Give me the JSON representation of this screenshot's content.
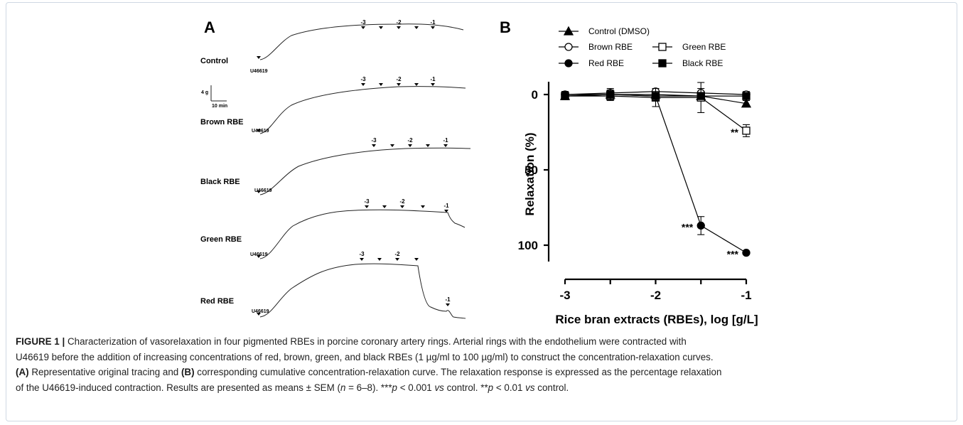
{
  "panel_a": {
    "label": "A",
    "traces": [
      {
        "name": "Control",
        "agonist": "U46619",
        "marks": [
          "-3",
          "-2",
          "-1"
        ]
      },
      {
        "name": "Brown RBE",
        "agonist": "U46619",
        "marks": [
          "-3",
          "-2",
          "-1"
        ]
      },
      {
        "name": "Black RBE",
        "agonist": "U46619",
        "marks": [
          "-3",
          "-2",
          "-1"
        ]
      },
      {
        "name": "Green RBE",
        "agonist": "U46619",
        "marks": [
          "-3",
          "-2",
          "-1"
        ]
      },
      {
        "name": "Red RBE",
        "agonist": "U46619",
        "marks": [
          "-3",
          "-2",
          "-1"
        ]
      }
    ],
    "scale_bar": {
      "force": "4 g",
      "time": "10 min"
    }
  },
  "panel_b": {
    "label": "B"
  },
  "chart_data": {
    "type": "line",
    "title": "",
    "xlabel": "Rice bran extracts (RBEs), log [g/L]",
    "ylabel": "Relaxation (%)",
    "xlim": [
      -3,
      -1
    ],
    "ylim": [
      0,
      100
    ],
    "y_inverted": true,
    "x_ticks": [
      "-3",
      "-2",
      "-1"
    ],
    "y_ticks": [
      "0",
      "50",
      "100"
    ],
    "legend_position": "top",
    "series": [
      {
        "name": "Control (DMSO)",
        "marker": "filled-triangle",
        "x": [
          -3,
          -2.5,
          -2,
          -1.5,
          -1
        ],
        "y": [
          1,
          0,
          0,
          1,
          6
        ],
        "err": [
          2,
          2,
          2,
          3,
          2
        ]
      },
      {
        "name": "Brown RBE",
        "marker": "open-circle",
        "x": [
          -3,
          -2.5,
          -2,
          -1.5,
          -1
        ],
        "y": [
          0,
          -1,
          -2,
          -1,
          0
        ],
        "err": [
          2,
          3,
          2,
          3,
          2
        ]
      },
      {
        "name": "Green RBE",
        "marker": "open-square",
        "x": [
          -3,
          -2.5,
          -2,
          -1.5,
          -1
        ],
        "y": [
          1,
          1,
          2,
          2,
          24
        ],
        "err": [
          2,
          3,
          6,
          10,
          4
        ]
      },
      {
        "name": "Red RBE",
        "marker": "filled-circle",
        "x": [
          -3,
          -2.5,
          -2,
          -1.5,
          -1
        ],
        "y": [
          0,
          0,
          1,
          87,
          105
        ],
        "err": [
          2,
          2,
          3,
          6,
          1
        ]
      },
      {
        "name": "Black RBE",
        "marker": "filled-square",
        "x": [
          -3,
          -2.5,
          -2,
          -1.5,
          -1
        ],
        "y": [
          1,
          0,
          1,
          1,
          1
        ],
        "err": [
          2,
          3,
          2,
          2,
          2
        ]
      }
    ],
    "annotations": [
      {
        "text": "**",
        "x": -1,
        "y": 24
      },
      {
        "text": "***",
        "x": -1.5,
        "y": 87
      },
      {
        "text": "***",
        "x": -1,
        "y": 105
      }
    ]
  },
  "caption": {
    "fig_label": "FIGURE 1 |",
    "line1": " Characterization of vasorelaxation in four pigmented RBEs in porcine coronary artery rings. Arterial rings with the endothelium were contracted with",
    "line2": "U46619 before the addition of increasing concentrations of red, brown, green, and black RBEs (1 µg/ml to 100 µg/ml) to construct the concentration-relaxation curves.",
    "l3_a_label": "(A)",
    "l3_a_text": " Representative original tracing and ",
    "l3_b_label": "(B)",
    "l3_b_text": " corresponding cumulative concentration-relaxation curve. The relaxation response is expressed as the percentage relaxation",
    "line4_a": "of the U46619-induced contraction. Results are presented as means ± SEM (",
    "line4_n": "n",
    "line4_b": " = 6–8). ***",
    "line4_p1": "p",
    "line4_c": " < 0.001 ",
    "line4_vs1": "vs",
    "line4_d": " control. **",
    "line4_p2": "p",
    "line4_e": " < 0.01 ",
    "line4_vs2": "vs",
    "line4_f": " control."
  }
}
